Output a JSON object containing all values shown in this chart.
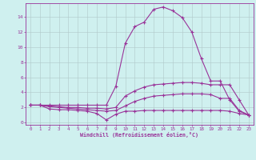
{
  "xlabel": "Windchill (Refroidissement éolien,°C)",
  "background_color": "#cff0ef",
  "grid_color": "#b0c8c8",
  "line_color": "#993399",
  "x": [
    0,
    1,
    2,
    3,
    4,
    5,
    6,
    7,
    8,
    9,
    10,
    11,
    12,
    13,
    14,
    15,
    16,
    17,
    18,
    19,
    20,
    21,
    22,
    23
  ],
  "line1": [
    2.3,
    2.3,
    1.8,
    1.7,
    1.7,
    1.6,
    1.5,
    1.2,
    0.35,
    1.1,
    1.5,
    1.5,
    1.6,
    1.6,
    1.6,
    1.6,
    1.6,
    1.6,
    1.6,
    1.6,
    1.6,
    1.5,
    1.2,
    1.0
  ],
  "line2": [
    2.3,
    2.3,
    2.1,
    2.0,
    1.9,
    1.8,
    1.7,
    1.6,
    1.5,
    1.6,
    2.2,
    2.8,
    3.2,
    3.5,
    3.6,
    3.7,
    3.8,
    3.8,
    3.8,
    3.7,
    3.2,
    3.2,
    1.6,
    1.0
  ],
  "line3": [
    2.3,
    2.3,
    2.2,
    2.1,
    2.0,
    2.0,
    1.9,
    1.9,
    1.8,
    2.0,
    3.5,
    4.2,
    4.7,
    5.0,
    5.1,
    5.2,
    5.3,
    5.3,
    5.2,
    5.0,
    5.0,
    5.0,
    3.0,
    1.0
  ],
  "line4": [
    2.3,
    2.3,
    2.3,
    2.3,
    2.3,
    2.3,
    2.3,
    2.3,
    2.3,
    4.8,
    10.5,
    12.7,
    13.3,
    15.0,
    15.3,
    14.8,
    13.9,
    12.0,
    8.5,
    5.5,
    5.5,
    3.0,
    1.5,
    1.0
  ],
  "xlim": [
    -0.5,
    23.5
  ],
  "ylim": [
    -0.3,
    15.8
  ],
  "yticks": [
    0,
    2,
    4,
    6,
    8,
    10,
    12,
    14
  ],
  "xticks": [
    0,
    1,
    2,
    3,
    4,
    5,
    6,
    7,
    8,
    9,
    10,
    11,
    12,
    13,
    14,
    15,
    16,
    17,
    18,
    19,
    20,
    21,
    22,
    23
  ]
}
